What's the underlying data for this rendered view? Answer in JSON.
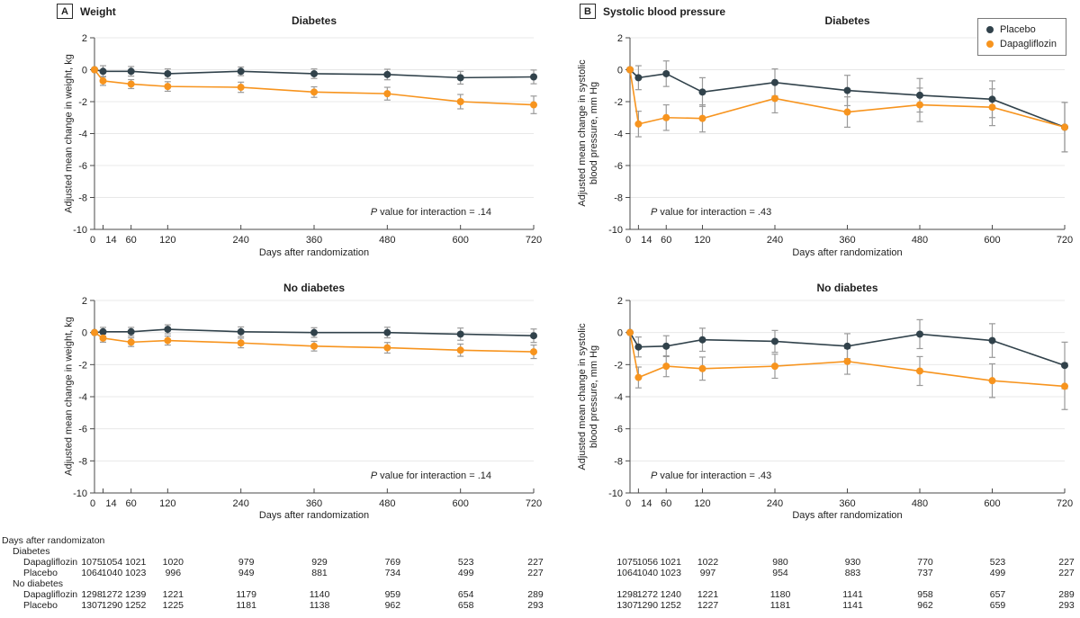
{
  "colors": {
    "placebo": "#31424b",
    "dapagliflozin": "#f7941e",
    "error": "#9a9a9a",
    "grid": "#e8e8e8",
    "axis": "#4a4a4a",
    "text": "#1f1f1f"
  },
  "panels": {
    "a": {
      "letter": "A",
      "title": "Weight"
    },
    "b": {
      "letter": "B",
      "title": "Systolic blood pressure"
    }
  },
  "legend": {
    "items": [
      {
        "label": "Placebo",
        "color": "#31424b"
      },
      {
        "label": "Dapagliflozin",
        "color": "#f7941e"
      }
    ],
    "position": "top-right"
  },
  "chart_data": [
    {
      "type": "line",
      "panel": "A",
      "title": "Diabetes",
      "xlabel": "Days after randomization",
      "ylabel": "Adjusted mean change in weight, kg",
      "xlim": [
        0,
        720
      ],
      "ylim": [
        -10,
        2
      ],
      "yticks": [
        2,
        0,
        -2,
        -4,
        -6,
        -8,
        -10
      ],
      "x": [
        0,
        14,
        60,
        120,
        240,
        360,
        480,
        600,
        720
      ],
      "p_italic": "P",
      "p_rest": " value for interaction = .14",
      "grid": true,
      "series": [
        {
          "name": "Placebo",
          "color": "#31424b",
          "values": [
            0,
            -0.1,
            -0.1,
            -0.25,
            -0.1,
            -0.25,
            -0.3,
            -0.5,
            -0.45
          ],
          "se": [
            0,
            0.35,
            0.3,
            0.3,
            0.27,
            0.3,
            0.33,
            0.4,
            0.43
          ]
        },
        {
          "name": "Dapagliflozin",
          "color": "#f7941e",
          "values": [
            0,
            -0.7,
            -0.9,
            -1.05,
            -1.1,
            -1.4,
            -1.5,
            -2.0,
            -2.2
          ],
          "se": [
            0,
            0.28,
            0.28,
            0.3,
            0.32,
            0.33,
            0.4,
            0.45,
            0.55
          ]
        }
      ]
    },
    {
      "type": "line",
      "panel": "B",
      "title": "Diabetes",
      "xlabel": "Days after randomization",
      "ylabel": "Adjusted mean change in systolic\nblood pressure, mm Hg",
      "xlim": [
        0,
        720
      ],
      "ylim": [
        -10,
        2
      ],
      "yticks": [
        2,
        0,
        -2,
        -4,
        -6,
        -8,
        -10
      ],
      "x": [
        0,
        14,
        60,
        120,
        240,
        360,
        480,
        600,
        720
      ],
      "p_italic": "P",
      "p_rest": " value for interaction = .43",
      "grid": true,
      "series": [
        {
          "name": "Placebo",
          "color": "#31424b",
          "values": [
            0,
            -0.5,
            -0.25,
            -1.4,
            -0.8,
            -1.3,
            -1.6,
            -1.85,
            -3.6
          ],
          "se": [
            0,
            0.75,
            0.8,
            0.9,
            0.85,
            0.95,
            1.05,
            1.15,
            1.55
          ]
        },
        {
          "name": "Dapagliflozin",
          "color": "#f7941e",
          "values": [
            0,
            -3.4,
            -3.0,
            -3.05,
            -1.8,
            -2.65,
            -2.2,
            -2.35,
            -3.6
          ],
          "se": [
            0,
            0.8,
            0.8,
            0.85,
            0.9,
            0.95,
            1.05,
            1.15,
            1.55
          ]
        }
      ]
    },
    {
      "type": "line",
      "panel": "A",
      "title": "No diabetes",
      "xlabel": "Days after randomization",
      "ylabel": "Adjusted mean change in weight, kg",
      "xlim": [
        0,
        720
      ],
      "ylim": [
        -10,
        2
      ],
      "yticks": [
        2,
        0,
        -2,
        -4,
        -6,
        -8,
        -10
      ],
      "x": [
        0,
        14,
        60,
        120,
        240,
        360,
        480,
        600,
        720
      ],
      "p_italic": "P",
      "p_rest": " value for interaction = .14",
      "grid": true,
      "series": [
        {
          "name": "Placebo",
          "color": "#31424b",
          "values": [
            0,
            0.05,
            0.05,
            0.2,
            0.05,
            0,
            0,
            -0.1,
            -0.2
          ],
          "se": [
            0,
            0.27,
            0.27,
            0.28,
            0.3,
            0.3,
            0.33,
            0.38,
            0.42
          ]
        },
        {
          "name": "Dapagliflozin",
          "color": "#f7941e",
          "values": [
            0,
            -0.35,
            -0.6,
            -0.5,
            -0.65,
            -0.85,
            -0.95,
            -1.1,
            -1.2
          ],
          "se": [
            0,
            0.25,
            0.27,
            0.28,
            0.3,
            0.3,
            0.33,
            0.38,
            0.42
          ]
        }
      ]
    },
    {
      "type": "line",
      "panel": "B",
      "title": "No diabetes",
      "xlabel": "Days after randomization",
      "ylabel": "Adjusted mean change in systolic\nblood pressure, mm Hg",
      "xlim": [
        0,
        720
      ],
      "ylim": [
        -10,
        2
      ],
      "yticks": [
        2,
        0,
        -2,
        -4,
        -6,
        -8,
        -10
      ],
      "x": [
        0,
        14,
        60,
        120,
        240,
        360,
        480,
        600,
        720
      ],
      "p_italic": "P",
      "p_rest": " value for interaction = .43",
      "grid": true,
      "series": [
        {
          "name": "Placebo",
          "color": "#31424b",
          "values": [
            0,
            -0.9,
            -0.85,
            -0.45,
            -0.55,
            -0.85,
            -0.1,
            -0.5,
            -2.05
          ],
          "se": [
            0,
            0.62,
            0.65,
            0.72,
            0.68,
            0.78,
            0.9,
            1.05,
            1.45
          ]
        },
        {
          "name": "Dapagliflozin",
          "color": "#f7941e",
          "values": [
            0,
            -2.8,
            -2.1,
            -2.25,
            -2.1,
            -1.8,
            -2.4,
            -3.0,
            -3.35
          ],
          "se": [
            0,
            0.65,
            0.65,
            0.72,
            0.75,
            0.8,
            0.9,
            1.05,
            1.45
          ]
        }
      ]
    }
  ],
  "counts_table": {
    "title": "Days after randomizaton",
    "days": [
      0,
      14,
      60,
      120,
      240,
      360,
      480,
      600,
      720
    ],
    "groups": [
      {
        "label": "Diabetes",
        "rows": [
          {
            "label": "Dapagliflozin",
            "left": [
              1075,
              1054,
              1021,
              1020,
              979,
              929,
              769,
              523,
              227
            ],
            "right": [
              1075,
              1056,
              1021,
              1022,
              980,
              930,
              770,
              523,
              227
            ]
          },
          {
            "label": "Placebo",
            "left": [
              1064,
              1040,
              1023,
              996,
              949,
              881,
              734,
              499,
              227
            ],
            "right": [
              1064,
              1040,
              1023,
              997,
              954,
              883,
              737,
              499,
              227
            ]
          }
        ]
      },
      {
        "label": "No diabetes",
        "rows": [
          {
            "label": "Dapagliflozin",
            "left": [
              1298,
              1272,
              1239,
              1221,
              1179,
              1140,
              959,
              654,
              289
            ],
            "right": [
              1298,
              1272,
              1240,
              1221,
              1180,
              1141,
              958,
              657,
              289
            ]
          },
          {
            "label": "Placebo",
            "left": [
              1307,
              1290,
              1252,
              1225,
              1181,
              1138,
              962,
              658,
              293
            ],
            "right": [
              1307,
              1290,
              1252,
              1227,
              1181,
              1141,
              962,
              659,
              293
            ]
          }
        ]
      }
    ]
  }
}
